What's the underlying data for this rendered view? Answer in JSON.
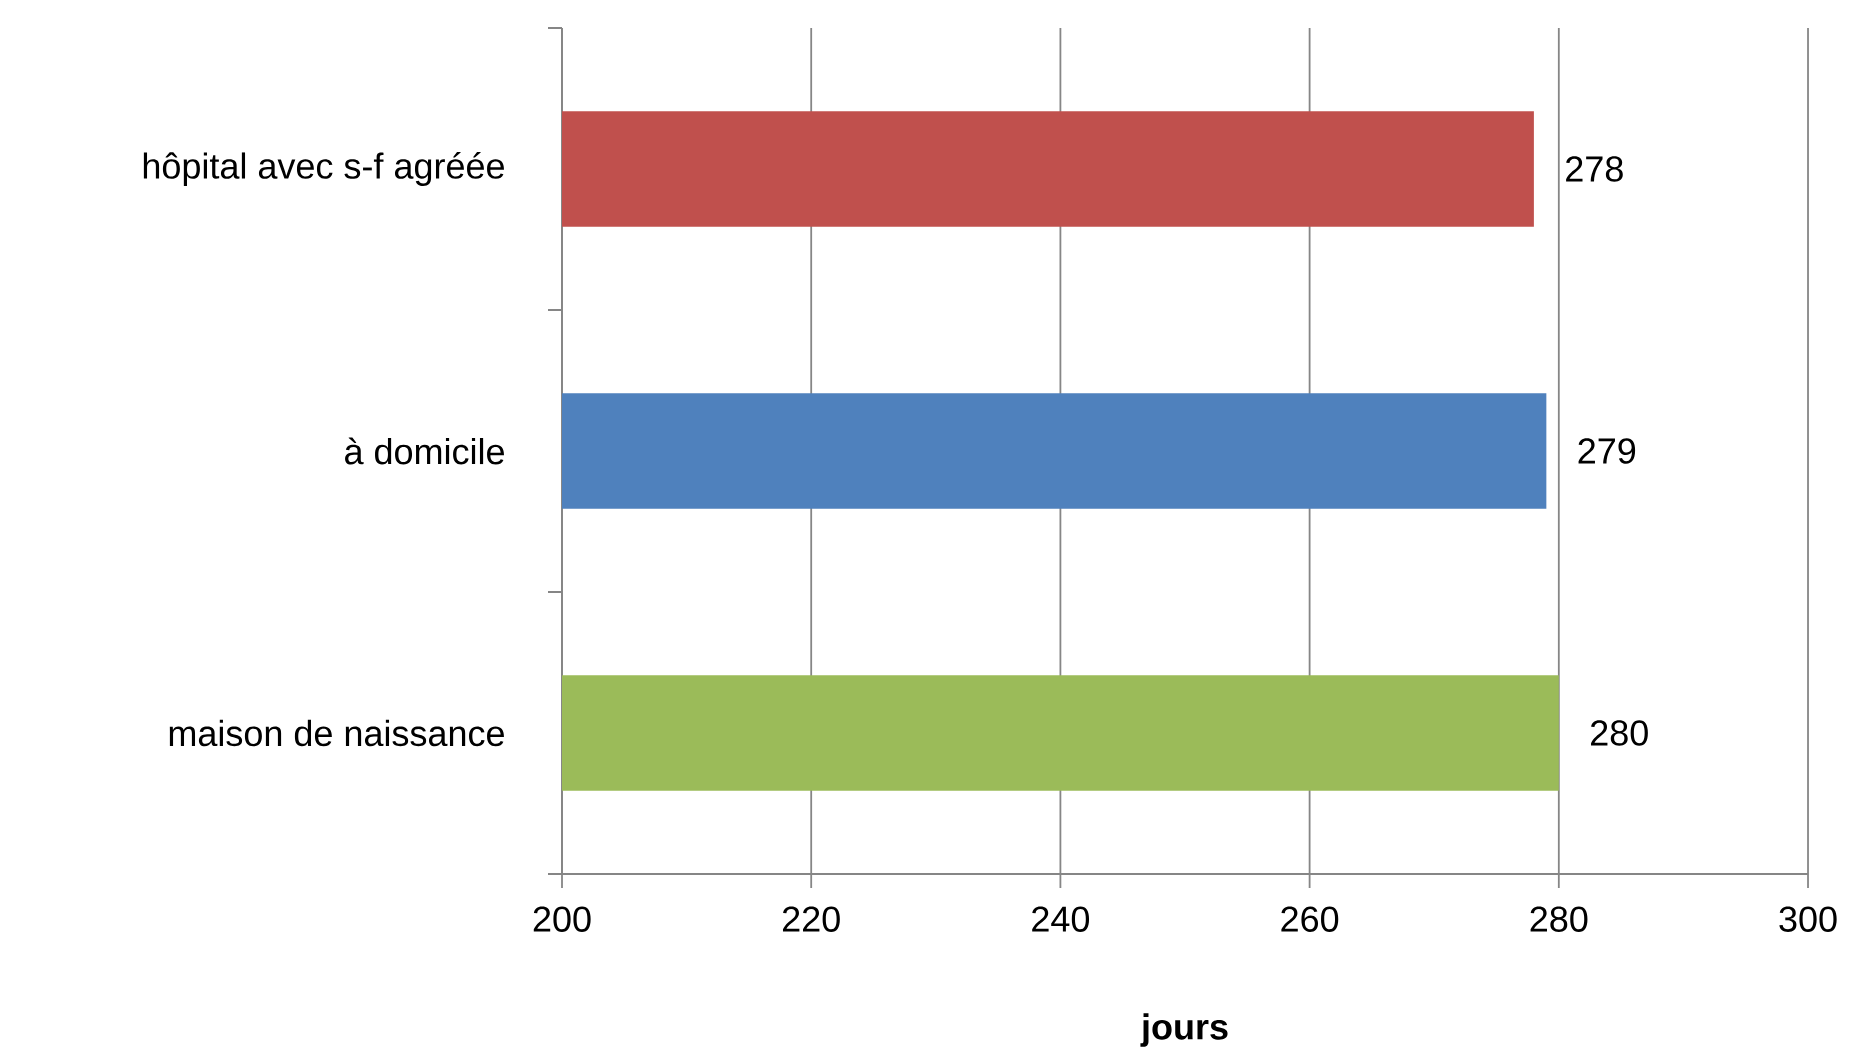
{
  "chart_data": {
    "type": "bar",
    "orientation": "horizontal",
    "xlabel": "jours",
    "categories": [
      "hôpital avec s-f agréée",
      "à domicile",
      "maison de naissance"
    ],
    "values": [
      278,
      279,
      280
    ],
    "colors": [
      "#c0504d",
      "#4f81bd",
      "#9bbb59"
    ],
    "xlim": [
      200,
      300
    ],
    "xticks": [
      200,
      220,
      240,
      260,
      280,
      300
    ],
    "grid": "x",
    "data_labels": true
  }
}
